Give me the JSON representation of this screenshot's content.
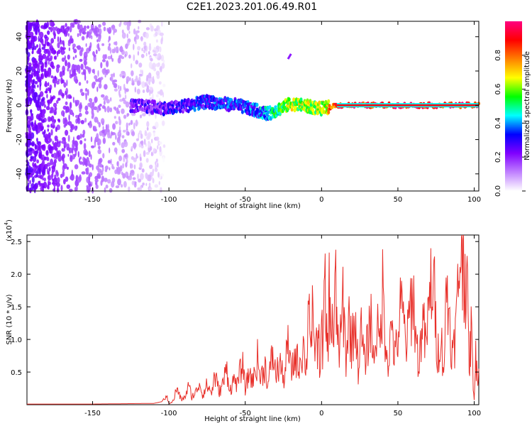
{
  "figure": {
    "title": "C2E1.2023.201.06.49.R01"
  },
  "chart_data": [
    {
      "type": "heatmap",
      "xlabel": "Height of straight line (km)",
      "ylabel": "Frequency (Hz)",
      "xlim": [
        -193,
        103
      ],
      "ylim": [
        -50,
        49
      ],
      "x_ticks": [
        -150,
        -100,
        -50,
        0,
        50,
        100
      ],
      "y_ticks": [
        -40,
        -20,
        0,
        20,
        40
      ],
      "colorbar": {
        "label": "Normalized spectral amplitude",
        "range": [
          0,
          1
        ],
        "ticks": [
          0.0,
          0.2,
          0.4,
          0.6,
          0.8
        ],
        "colormap": [
          "#ffffff",
          "#c080ff",
          "#8000ff",
          "#0000ff",
          "#00ffff",
          "#00ff00",
          "#ffff00",
          "#ff8000",
          "#ff0000",
          "#ff0080"
        ]
      },
      "ridge": {
        "description_points": [
          {
            "x": -125,
            "freq": 0,
            "amp": 0.2
          },
          {
            "x": -100,
            "freq": -2,
            "amp": 0.25
          },
          {
            "x": -75,
            "freq": 2,
            "amp": 0.3
          },
          {
            "x": -55,
            "freq": 0,
            "amp": 0.3
          },
          {
            "x": -35,
            "freq": -5,
            "amp": 0.4
          },
          {
            "x": -20,
            "freq": 1,
            "amp": 0.6
          },
          {
            "x": 0,
            "freq": -2,
            "amp": 0.6
          },
          {
            "x": 10,
            "freq": 0,
            "amp": 0.9
          },
          {
            "x": 103,
            "freq": 0,
            "amp": 0.9
          }
        ]
      },
      "streak": {
        "x": [
          -22,
          -20
        ],
        "freq": [
          27,
          30
        ]
      },
      "grid": false
    },
    {
      "type": "line",
      "xlabel": "Height of straight line (km)",
      "ylabel": "SNR (10 * v/v)",
      "multiplier_label_base": "(x10",
      "multiplier_label_exp": "4",
      "xlim": [
        -193,
        103
      ],
      "ylim": [
        0,
        2.6
      ],
      "x_ticks": [
        -150,
        -100,
        -50,
        0,
        50,
        100
      ],
      "y_ticks": [
        0.5,
        1.0,
        1.5,
        2.0,
        2.5
      ],
      "series": [
        {
          "color": "#e8302a",
          "x": [
            -193,
            -150,
            -110,
            -104,
            -102,
            -100,
            -97,
            -95,
            -92,
            -90,
            -87,
            -85,
            -82,
            -80,
            -78,
            -75,
            -72,
            -70,
            -67,
            -65,
            -62,
            -60,
            -57,
            -55,
            -52,
            -50,
            -47,
            -45,
            -42,
            -40,
            -37,
            -35,
            -32,
            -30,
            -27,
            -25,
            -22,
            -20,
            -17,
            -15,
            -12,
            -10,
            -8,
            -7,
            -6,
            -5,
            -4,
            -3,
            -2,
            -1,
            0,
            1,
            2,
            3,
            4,
            5,
            6,
            7,
            8,
            9,
            10,
            12,
            14,
            16,
            18,
            20,
            22,
            24,
            26,
            28,
            30,
            32,
            34,
            36,
            38,
            40,
            42,
            44,
            46,
            48,
            50,
            52,
            54,
            56,
            58,
            60,
            62,
            64,
            66,
            68,
            70,
            72,
            74,
            76,
            78,
            80,
            82,
            84,
            86,
            88,
            90,
            91,
            92,
            93,
            94,
            95,
            96,
            97,
            98,
            99,
            100,
            101,
            102,
            103
          ],
          "values": [
            0.01,
            0.01,
            0.02,
            0.05,
            0.15,
            0.02,
            0.06,
            0.25,
            0.08,
            0.1,
            0.28,
            0.12,
            0.2,
            0.35,
            0.15,
            0.3,
            0.18,
            0.45,
            0.2,
            0.3,
            0.55,
            0.22,
            0.4,
            0.3,
            0.65,
            0.25,
            0.5,
            0.35,
            0.7,
            0.4,
            0.6,
            0.3,
            0.8,
            0.45,
            0.65,
            0.35,
            0.9,
            0.5,
            0.75,
            0.6,
            0.9,
            0.55,
            1.93,
            0.8,
            1.3,
            0.75,
            1.1,
            0.8,
            1.0,
            0.6,
            1.2,
            0.75,
            1.85,
            1.1,
            0.9,
            1.7,
            1.0,
            1.5,
            0.85,
            1.95,
            1.2,
            0.8,
            1.6,
            0.7,
            1.3,
            0.9,
            1.4,
            0.55,
            1.1,
            0.65,
            0.9,
            1.4,
            0.7,
            1.2,
            0.9,
            1.75,
            1.0,
            0.65,
            1.3,
            0.7,
            1.05,
            1.5,
            1.2,
            0.9,
            1.5,
            1.7,
            0.95,
            0.6,
            1.4,
            0.9,
            1.3,
            1.95,
            1.6,
            0.75,
            1.1,
            0.55,
            1.8,
            1.3,
            0.7,
            1.2,
            1.9,
            2.6,
            2.2,
            2.4,
            2.0,
            2.1,
            1.1,
            0.6,
            1.2,
            0.5,
            0.1,
            0.7,
            0.5,
            0.55
          ]
        }
      ],
      "grid": false
    }
  ]
}
